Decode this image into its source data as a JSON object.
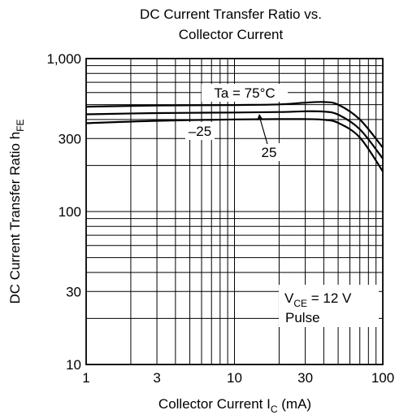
{
  "chart_data": {
    "type": "line",
    "title_line1": "DC Current Transfer Ratio vs.",
    "title_line2": "Collector Current",
    "xlabel_main": "Collector Current  I",
    "xlabel_sub": "C",
    "xlabel_unit": "  (mA)",
    "ylabel_main": "DC Current Transfer Ratio  h",
    "ylabel_sub": "FE",
    "x_scale": "log",
    "y_scale": "log",
    "xlim": [
      1,
      100
    ],
    "ylim": [
      10,
      1000
    ],
    "grid": true,
    "x_ticks": [
      {
        "value": 1,
        "label": "1"
      },
      {
        "value": 3,
        "label": "3"
      },
      {
        "value": 10,
        "label": "10"
      },
      {
        "value": 30,
        "label": "30"
      },
      {
        "value": 100,
        "label": "100"
      }
    ],
    "y_ticks": [
      {
        "value": 10,
        "label": "10"
      },
      {
        "value": 30,
        "label": "30"
      },
      {
        "value": 100,
        "label": "100"
      },
      {
        "value": 300,
        "label": "300"
      },
      {
        "value": 1000,
        "label": "1,000"
      }
    ],
    "series": [
      {
        "name": "Ta = 75°C",
        "points": [
          [
            1,
            485
          ],
          [
            3,
            493
          ],
          [
            10,
            497
          ],
          [
            20,
            502
          ],
          [
            30,
            515
          ],
          [
            40,
            520
          ],
          [
            50,
            500
          ],
          [
            70,
            400
          ],
          [
            100,
            262
          ]
        ]
      },
      {
        "name": "25",
        "points": [
          [
            1,
            432
          ],
          [
            3,
            440
          ],
          [
            10,
            444
          ],
          [
            20,
            447
          ],
          [
            30,
            452
          ],
          [
            40,
            450
          ],
          [
            50,
            430
          ],
          [
            70,
            345
          ],
          [
            100,
            222
          ]
        ]
      },
      {
        "name": "–25",
        "points": [
          [
            1,
            378
          ],
          [
            3,
            392
          ],
          [
            10,
            400
          ],
          [
            20,
            402
          ],
          [
            30,
            402
          ],
          [
            40,
            398
          ],
          [
            50,
            380
          ],
          [
            70,
            305
          ],
          [
            100,
            183
          ]
        ]
      }
    ],
    "annotations": {
      "label_75": "Ta = 75°C",
      "label_m25": "–25",
      "label_25": "25",
      "vce_main": "V",
      "vce_sub": "CE",
      "vce_value": " = 12 V",
      "pulse": "Pulse"
    }
  }
}
